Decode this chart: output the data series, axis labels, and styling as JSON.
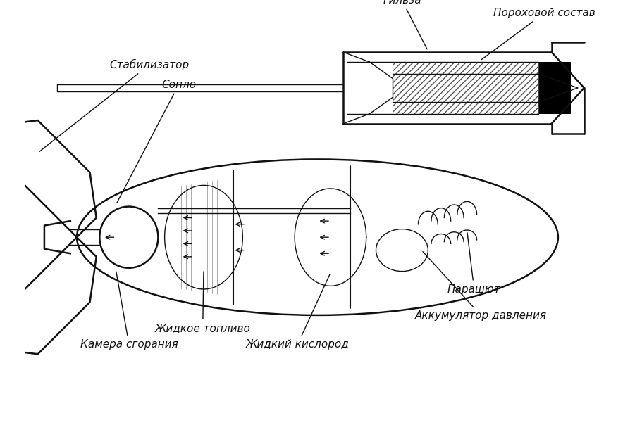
{
  "bg_color": "#f0f0f0",
  "line_color": "#111111",
  "hatch_color": "#555555",
  "labels": {
    "gilza": "Гильза",
    "poroh": "Пороховой состав",
    "stabilizator": "Стабилизатор",
    "soplo": "Сопло",
    "camera": "Камера сгорания",
    "zhidkoe_toplivo": "Жидкое топливо",
    "zhidkiy_kislorod": "Жидкий кислород",
    "akkumulator": "Аккумулятор давления",
    "parashut": "Парашют"
  },
  "font_size": 11,
  "title_font_size": 12
}
